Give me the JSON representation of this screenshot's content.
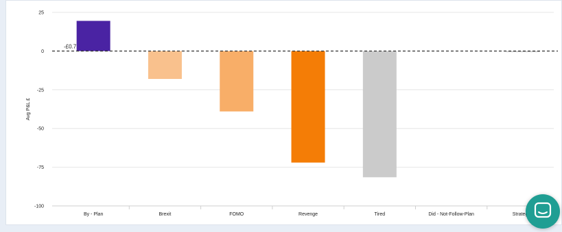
{
  "chart_data": {
    "type": "bar",
    "categories": [
      "By - Plan",
      "Brexit",
      "FOMO",
      "Revenge",
      "Tired",
      "Did - Not-Follow-Plan",
      "Strategy -"
    ],
    "values": [
      19.5,
      -18,
      -39,
      -72,
      -81.5,
      0,
      -0.7
    ],
    "colors": [
      "#4a23a3",
      "#f9c18d",
      "#f8ae68",
      "#f47d06",
      "#cbcbcb",
      "#cbcbcb",
      "#cbcbcb"
    ],
    "ylabel": "Avg P&L £",
    "ylim": [
      -100,
      25
    ],
    "yticks": [
      25,
      0,
      -25,
      -50,
      -75,
      -100
    ],
    "grid": true,
    "reference_line": 0,
    "annotation": {
      "text": "-£0.7",
      "category_index": 0
    }
  },
  "chat_widget": {
    "icon": "chat-bubble-icon",
    "color": "#1f9e93"
  }
}
